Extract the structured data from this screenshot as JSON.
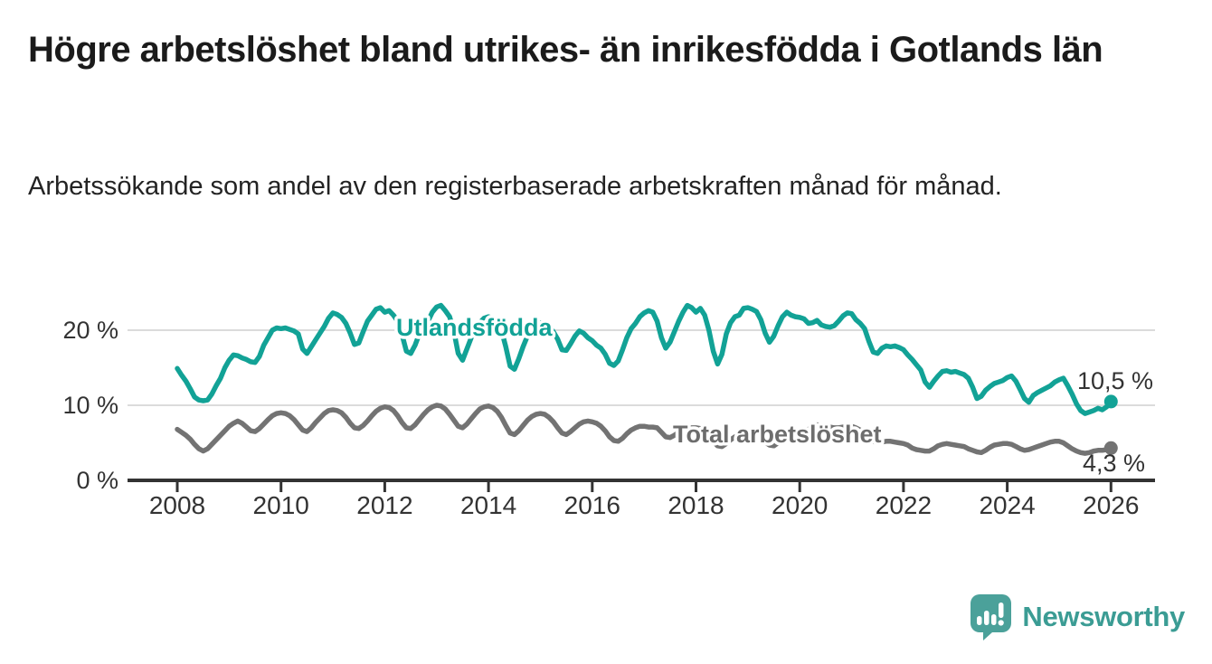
{
  "header": {
    "title": "Högre arbetslöshet bland utrikes- än inrikesfödda i Gotlands län",
    "subtitle": "Arbetssökande som andel av den registerbaserade arbetskraften månad för månad."
  },
  "chart_data": {
    "type": "line",
    "title": "Högre arbetslöshet bland utrikes- än inrikesfödda i Gotlands län",
    "xlabel": "",
    "ylabel": "Arbetssökande som andel av den registerbaserade arbetskraften",
    "unit": "%",
    "frequency": "monthly",
    "x_start": "2008-01",
    "x_end": "2026-01",
    "ylim": [
      0,
      24.5
    ],
    "grid": "horizontal",
    "legend_position": "inline-labels",
    "y_axis": [
      {
        "label": "0 %",
        "value": 0
      },
      {
        "label": "10 %",
        "value": 10
      },
      {
        "label": "20 %",
        "value": 20
      }
    ],
    "x_axis": [
      {
        "label": "2008",
        "year": 2008
      },
      {
        "label": "2010",
        "year": 2010
      },
      {
        "label": "2012",
        "year": 2012
      },
      {
        "label": "2014",
        "year": 2014
      },
      {
        "label": "2016",
        "year": 2016
      },
      {
        "label": "2018",
        "year": 2018
      },
      {
        "label": "2020",
        "year": 2020
      },
      {
        "label": "2022",
        "year": 2022
      },
      {
        "label": "2024",
        "year": 2024
      },
      {
        "label": "2026",
        "year": 2026
      }
    ],
    "series": [
      {
        "name": "Utlandsfödda",
        "color": "#12a296",
        "end_label": "10,5 %",
        "end_value": 10.5,
        "values": [
          14.9,
          14.0,
          13.2,
          12.2,
          11.1,
          10.7,
          10.6,
          10.7,
          11.5,
          12.6,
          13.6,
          15.0,
          16.0,
          16.7,
          16.6,
          16.3,
          16.1,
          15.8,
          15.7,
          16.5,
          18.0,
          19.0,
          20.0,
          20.3,
          20.2,
          20.3,
          20.1,
          19.9,
          19.5,
          17.5,
          16.9,
          17.8,
          18.7,
          19.6,
          20.5,
          21.6,
          22.3,
          22.1,
          21.7,
          20.9,
          19.6,
          18.1,
          18.3,
          19.8,
          21.2,
          22.0,
          22.8,
          23.0,
          22.4,
          22.6,
          22.0,
          21.2,
          19.4,
          17.2,
          16.9,
          18.0,
          19.5,
          20.4,
          21.2,
          22.4,
          23.1,
          23.3,
          22.6,
          21.8,
          19.8,
          16.9,
          16.0,
          17.5,
          19.0,
          20.2,
          21.0,
          21.6,
          21.8,
          21.5,
          21.0,
          20.0,
          17.8,
          15.2,
          14.8,
          16.2,
          17.8,
          19.2,
          20.2,
          20.8,
          21.0,
          20.8,
          20.4,
          19.8,
          18.8,
          17.4,
          17.3,
          18.2,
          19.2,
          19.9,
          19.6,
          19.0,
          18.6,
          18.0,
          17.6,
          16.8,
          15.6,
          15.3,
          15.9,
          17.4,
          19.0,
          20.2,
          20.9,
          21.8,
          22.3,
          22.6,
          22.4,
          21.2,
          19.0,
          17.6,
          18.4,
          19.8,
          21.2,
          22.4,
          23.3,
          23.0,
          22.4,
          22.9,
          22.0,
          20.0,
          17.2,
          15.5,
          16.8,
          19.5,
          21.0,
          21.8,
          22.0,
          22.9,
          23.0,
          22.8,
          22.5,
          21.4,
          19.6,
          18.4,
          19.2,
          20.6,
          21.8,
          22.4,
          22.0,
          21.8,
          21.7,
          21.5,
          20.9,
          21.0,
          21.3,
          20.7,
          20.5,
          20.4,
          20.6,
          21.2,
          21.9,
          22.3,
          22.2,
          21.4,
          20.9,
          20.2,
          18.5,
          17.1,
          16.9,
          17.6,
          17.9,
          17.8,
          17.9,
          17.7,
          17.4,
          16.7,
          16.1,
          15.4,
          14.7,
          13.1,
          12.4,
          13.2,
          13.9,
          14.5,
          14.6,
          14.4,
          14.5,
          14.3,
          14.1,
          13.6,
          12.4,
          10.9,
          11.2,
          12.0,
          12.5,
          12.9,
          13.1,
          13.3,
          13.7,
          13.9,
          13.2,
          12.1,
          10.9,
          10.4,
          11.3,
          11.7,
          12.0,
          12.3,
          12.6,
          13.1,
          13.4,
          13.6,
          12.6,
          11.5,
          10.2,
          9.3,
          8.9,
          9.1,
          9.3,
          9.6,
          9.4,
          9.8,
          10.5
        ]
      },
      {
        "name": "Total arbetslöshet",
        "color": "#737373",
        "end_label": "4,3 %",
        "end_value": 4.3,
        "values": [
          6.8,
          6.4,
          6.0,
          5.5,
          4.8,
          4.2,
          3.9,
          4.2,
          4.8,
          5.4,
          6.0,
          6.6,
          7.2,
          7.6,
          7.9,
          7.6,
          7.1,
          6.6,
          6.5,
          6.9,
          7.5,
          8.1,
          8.6,
          8.9,
          9.0,
          8.9,
          8.6,
          8.1,
          7.4,
          6.7,
          6.5,
          7.0,
          7.7,
          8.3,
          8.9,
          9.3,
          9.4,
          9.3,
          9.0,
          8.4,
          7.6,
          7.0,
          6.9,
          7.3,
          7.9,
          8.6,
          9.2,
          9.6,
          9.8,
          9.7,
          9.3,
          8.6,
          7.7,
          7.0,
          6.9,
          7.4,
          8.1,
          8.8,
          9.4,
          9.8,
          10.0,
          9.9,
          9.5,
          8.8,
          8.0,
          7.2,
          7.0,
          7.5,
          8.2,
          8.9,
          9.5,
          9.8,
          9.9,
          9.7,
          9.2,
          8.4,
          7.3,
          6.3,
          6.1,
          6.6,
          7.3,
          8.0,
          8.5,
          8.8,
          8.9,
          8.8,
          8.4,
          7.8,
          7.0,
          6.3,
          6.1,
          6.5,
          7.0,
          7.5,
          7.8,
          7.9,
          7.8,
          7.6,
          7.2,
          6.6,
          5.8,
          5.3,
          5.2,
          5.6,
          6.2,
          6.7,
          7.0,
          7.2,
          7.2,
          7.1,
          7.1,
          7.0,
          6.4,
          5.8,
          5.7,
          6.0,
          6.4,
          6.7,
          6.9,
          7.0,
          7.0,
          6.9,
          6.6,
          6.0,
          5.2,
          4.6,
          4.5,
          4.9,
          5.4,
          5.8,
          6.1,
          6.3,
          6.4,
          6.3,
          6.1,
          5.7,
          5.1,
          4.7,
          4.6,
          5.0,
          5.5,
          5.9,
          6.1,
          6.2,
          6.3,
          6.5,
          6.8,
          7.2,
          7.4,
          7.3,
          7.2,
          7.1,
          7.0,
          7.0,
          7.1,
          7.2,
          7.2,
          7.0,
          6.7,
          6.3,
          5.7,
          5.2,
          5.0,
          5.1,
          5.2,
          5.2,
          5.1,
          5.0,
          4.9,
          4.7,
          4.3,
          4.1,
          4.0,
          3.9,
          3.9,
          4.2,
          4.6,
          4.8,
          4.9,
          4.8,
          4.7,
          4.6,
          4.5,
          4.2,
          4.0,
          3.8,
          3.7,
          4.0,
          4.4,
          4.7,
          4.8,
          4.9,
          4.9,
          4.8,
          4.5,
          4.2,
          4.0,
          4.1,
          4.3,
          4.5,
          4.7,
          4.9,
          5.1,
          5.2,
          5.2,
          5.0,
          4.6,
          4.2,
          3.9,
          3.7,
          3.6,
          3.7,
          3.9,
          4.0,
          4.0,
          4.1,
          4.3
        ]
      }
    ],
    "colors": {
      "axis": "#333333",
      "gridline": "#cfcfcf",
      "value_label": "#333333"
    }
  },
  "footer": {
    "brand": "Newsworthy",
    "logo_color": "#4ba19a",
    "text_color": "#3b9c94"
  }
}
